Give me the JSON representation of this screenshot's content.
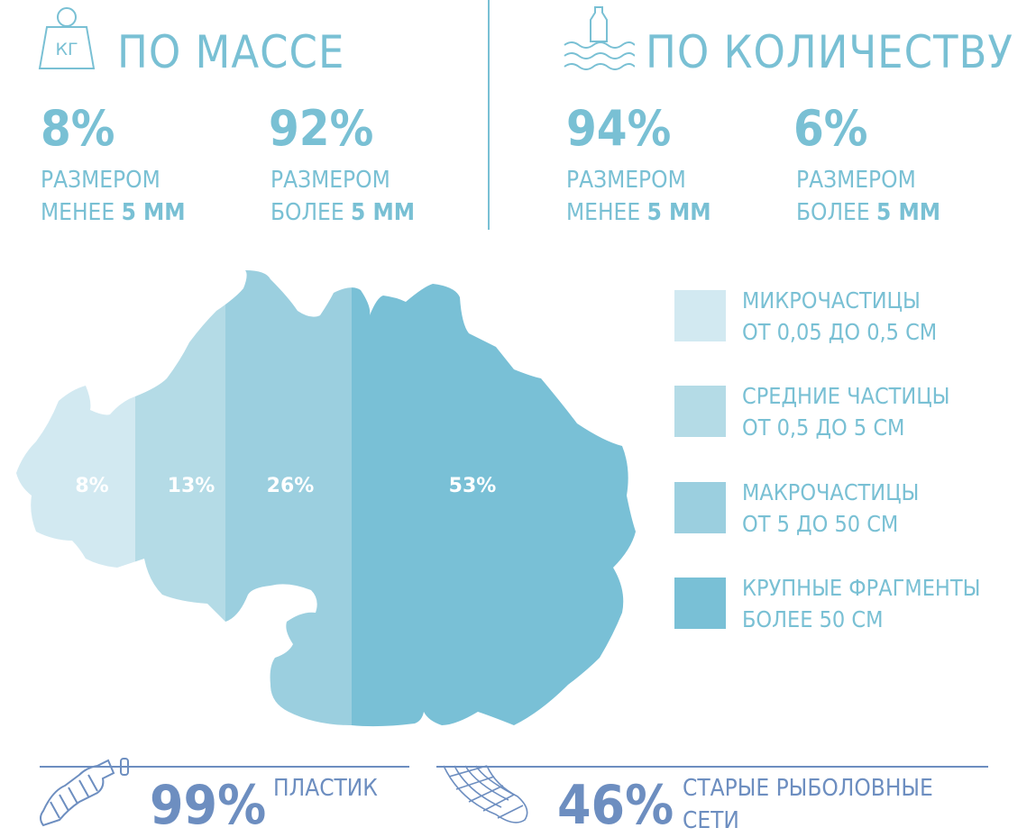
{
  "colors": {
    "accent": "#79c0d4",
    "bottom_accent": "#6d8ec0",
    "segments": [
      "#d2e9f1",
      "#b4dbe6",
      "#9bcfdf",
      "#79c0d6"
    ]
  },
  "mass": {
    "title": "ПО МАССЕ",
    "icon": "weight-kg-icon",
    "icon_text": "КГ",
    "items": [
      {
        "value": "8%",
        "line1": "РАЗМЕРОМ",
        "line2_prefix": "МЕНЕЕ",
        "line2_bold": "5 ММ"
      },
      {
        "value": "92%",
        "line1": "РАЗМЕРОМ",
        "line2_prefix": "БОЛЕЕ",
        "line2_bold": "5 ММ"
      }
    ]
  },
  "count": {
    "title": "ПО КОЛИЧЕСТВУ",
    "icon": "bottle-in-waves-icon",
    "items": [
      {
        "value": "94%",
        "line1": "РАЗМЕРОМ",
        "line2_prefix": "МЕНЕЕ",
        "line2_bold": "5 ММ"
      },
      {
        "value": "6%",
        "line1": "РАЗМЕРОМ",
        "line2_prefix": "БОЛЕЕ",
        "line2_bold": "5 ММ"
      }
    ]
  },
  "chart_data": {
    "type": "bar",
    "stacked_percent": true,
    "categories": [
      "МИКРОЧАСТИЦЫ ОТ 0,05 ДО 0,5 СМ",
      "СРЕДНИЕ ЧАСТИЦЫ ОТ 0,5 ДО 5 СМ",
      "МАКРОЧАСТИЦЫ ОТ 5 ДО 50 СМ",
      "КРУПНЫЕ ФРАГМЕНТЫ БОЛЕЕ 50 СМ"
    ],
    "values": [
      8,
      13,
      26,
      53
    ],
    "data_labels": [
      "8%",
      "13%",
      "26%",
      "53%"
    ],
    "legend_placement": "right"
  },
  "legend": [
    {
      "line1": "МИКРОЧАСТИЦЫ",
      "line2": "ОТ 0,05 ДО 0,5 СМ"
    },
    {
      "line1": "СРЕДНИЕ ЧАСТИЦЫ",
      "line2": "ОТ 0,5 ДО 5 СМ"
    },
    {
      "line1": "МАКРОЧАСТИЦЫ",
      "line2": "ОТ 5 ДО 50 СМ"
    },
    {
      "line1": "КРУПНЫЕ ФРАГМЕНТЫ",
      "line2": "БОЛЕЕ 50 СМ"
    }
  ],
  "bottom": [
    {
      "icon": "crushed-bottle-icon",
      "value": "99%",
      "line1": "ПЛАСТИК",
      "line2": ""
    },
    {
      "icon": "fishing-net-icon",
      "value": "46%",
      "line1": "СТАРЫЕ РЫБОЛОВНЫЕ",
      "line2": "СЕТИ"
    }
  ]
}
